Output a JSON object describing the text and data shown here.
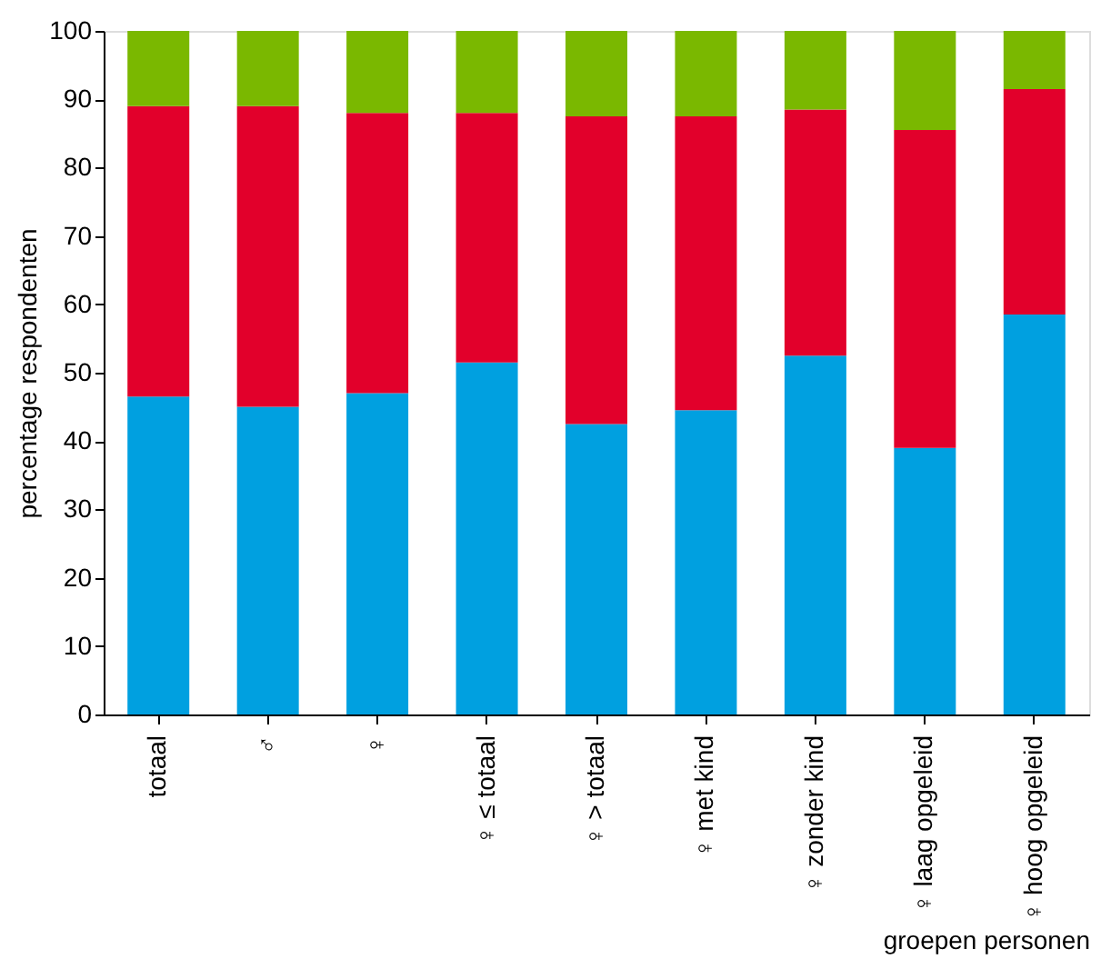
{
  "chart_data": {
    "type": "bar",
    "stacked": true,
    "xlabel": "groepen personen",
    "ylabel": "percentage respondenten",
    "categories": [
      "totaal",
      "♂",
      "♀",
      "♀ ≤ totaal",
      "♀ > totaal",
      "♀ met kind",
      "♀ zonder kind",
      "♀ laag opgeleid",
      "♀ hoog opgeleid"
    ],
    "series": [
      {
        "color": "#00a0e0",
        "values": [
          46.5,
          45,
          47,
          51.5,
          42.5,
          44.5,
          52.5,
          39,
          58.5
        ]
      },
      {
        "color": "#e2002b",
        "values": [
          42.5,
          44,
          41,
          36.5,
          45,
          43,
          36,
          46.5,
          33
        ]
      },
      {
        "color": "#7ab800",
        "values": [
          11,
          11,
          12,
          12,
          12.5,
          12.5,
          11.5,
          14.5,
          8.5
        ]
      }
    ],
    "ylim": [
      0,
      100
    ],
    "yticks": [
      0,
      10,
      20,
      30,
      40,
      50,
      60,
      70,
      80,
      90,
      100
    ],
    "grid": false,
    "legend": false
  }
}
